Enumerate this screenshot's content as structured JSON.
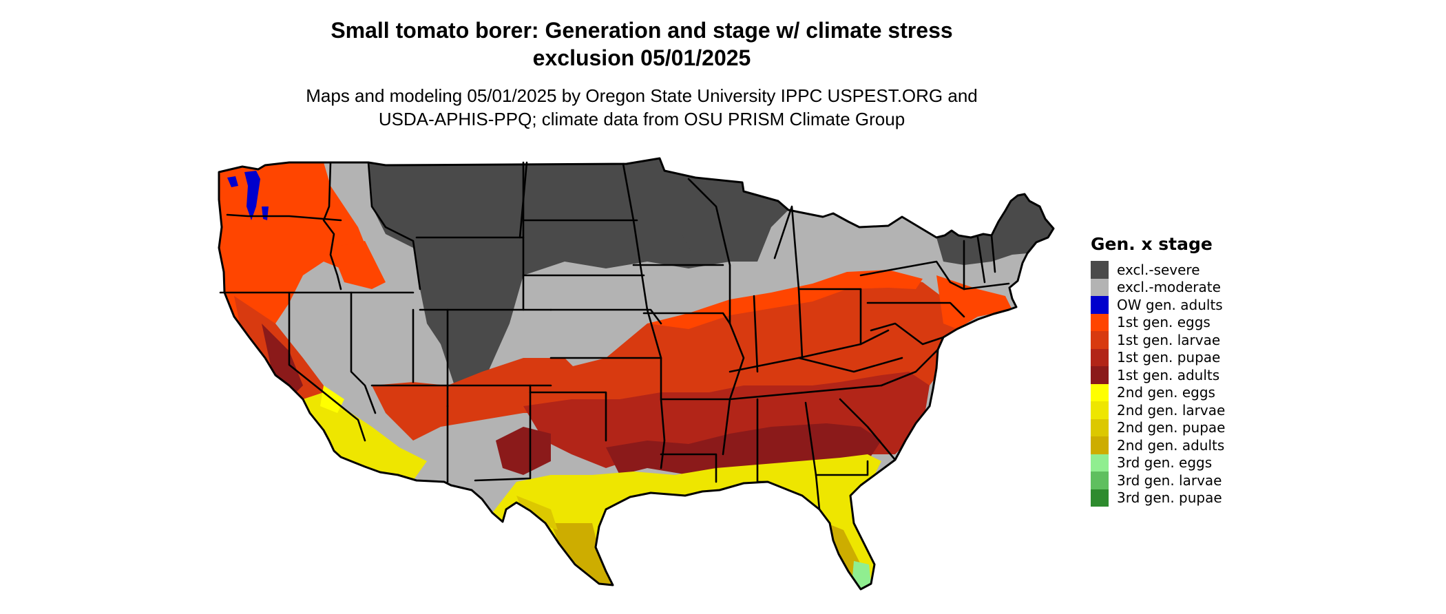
{
  "title_line1": "Small tomato borer: Generation and stage w/ climate stress",
  "title_line2": "exclusion 05/01/2025",
  "subtitle_line1": "Maps and modeling 05/01/2025 by Oregon State University IPPC USPEST.ORG and",
  "subtitle_line2": "USDA-APHIS-PPQ; climate data from OSU PRISM Climate Group",
  "legend": {
    "title": "Gen. x stage",
    "items": [
      {
        "label": "excl.-severe",
        "color": "#4a4a4a"
      },
      {
        "label": "excl.-moderate",
        "color": "#b3b3b3"
      },
      {
        "label": "OW gen. adults",
        "color": "#0000cd"
      },
      {
        "label": "1st gen. eggs",
        "color": "#ff4500"
      },
      {
        "label": "1st gen. larvae",
        "color": "#d83a10"
      },
      {
        "label": "1st gen. pupae",
        "color": "#b22518"
      },
      {
        "label": "1st gen. adults",
        "color": "#8b1a1a"
      },
      {
        "label": "2nd gen. eggs",
        "color": "#ffff00"
      },
      {
        "label": "2nd gen. larvae",
        "color": "#eee600"
      },
      {
        "label": "2nd gen. pupae",
        "color": "#dcc800"
      },
      {
        "label": "2nd gen. adults",
        "color": "#cdad00"
      },
      {
        "label": "3rd gen. eggs",
        "color": "#90ee90"
      },
      {
        "label": "3rd gen. larvae",
        "color": "#5fbf5f"
      },
      {
        "label": "3rd gen. pupae",
        "color": "#2e8b2e"
      }
    ]
  }
}
